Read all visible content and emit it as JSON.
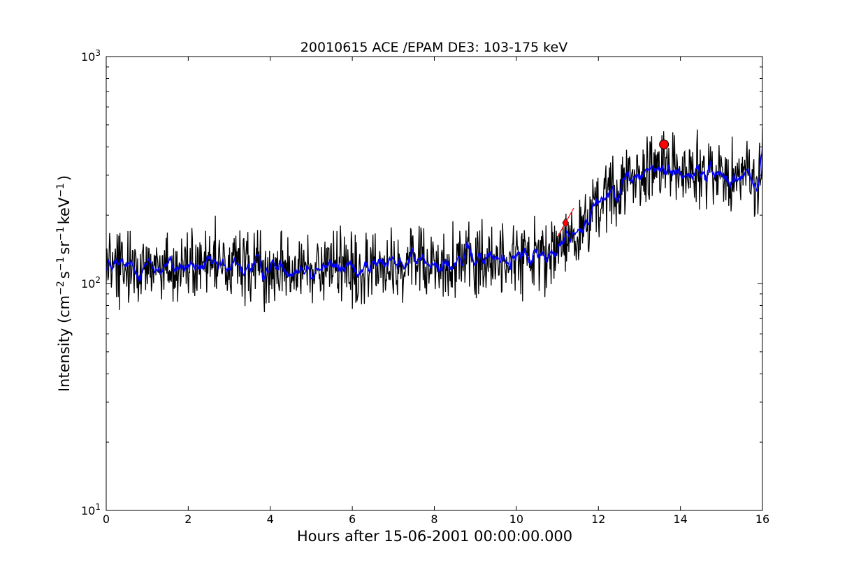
{
  "chart_data": {
    "type": "line",
    "title": "20010615 ACE /EPAM DE3: 103-175 keV",
    "xlabel": "Hours after 15-06-2001 00:00:00.000",
    "ylabel": {
      "prefix": "Intensity (cm",
      "exp1": "−2",
      "mid1": "s",
      "exp2": "−1",
      "mid2": "sr",
      "exp3": "−1",
      "mid3": "keV",
      "exp4": "−1",
      "suffix": ")"
    },
    "xlim": [
      0,
      16
    ],
    "ylim": [
      10,
      1000
    ],
    "yscale": "log",
    "grid": false,
    "x_ticks": [
      0,
      2,
      4,
      6,
      8,
      10,
      12,
      14,
      16
    ],
    "x_tick_labels": [
      "0",
      "2",
      "4",
      "6",
      "8",
      "10",
      "12",
      "14",
      "16"
    ],
    "y_tick_labels": [
      {
        "base": "10",
        "exp": "1"
      },
      {
        "base": "10",
        "exp": "2"
      },
      {
        "base": "10",
        "exp": "3"
      }
    ],
    "series": [
      {
        "color": "#000000",
        "style": "noisy-raw",
        "profile": [
          [
            0,
            118
          ],
          [
            6,
            118
          ],
          [
            7.5,
            125
          ],
          [
            10,
            130
          ],
          [
            11,
            135
          ],
          [
            11.3,
            165
          ],
          [
            11.6,
            180
          ],
          [
            12,
            235
          ],
          [
            12.6,
            280
          ],
          [
            13,
            300
          ],
          [
            13.5,
            320
          ],
          [
            14,
            310
          ],
          [
            15,
            305
          ],
          [
            15.9,
            280
          ],
          [
            16,
            390
          ]
        ],
        "noise_dex": 0.085
      },
      {
        "color": "#0000ff",
        "style": "smoothed",
        "profile": [
          [
            0,
            118
          ],
          [
            6,
            118
          ],
          [
            7.5,
            125
          ],
          [
            10,
            130
          ],
          [
            11,
            135
          ],
          [
            11.3,
            165
          ],
          [
            11.6,
            180
          ],
          [
            12,
            235
          ],
          [
            12.6,
            280
          ],
          [
            13,
            300
          ],
          [
            13.5,
            320
          ],
          [
            14,
            310
          ],
          [
            15,
            305
          ],
          [
            15.9,
            280
          ],
          [
            16,
            390
          ]
        ],
        "noise_dex": 0.04
      }
    ],
    "markers": [
      {
        "x": 11.2,
        "y": 185,
        "shape": "diamond",
        "color": "#ff0000"
      },
      {
        "x": 13.6,
        "y": 410,
        "shape": "circle",
        "color": "#ff0000"
      }
    ],
    "onset_lines": [
      {
        "x": [
          11.0,
          11.4
        ],
        "y": [
          160,
          215
        ],
        "color": "#ff0000"
      }
    ]
  }
}
